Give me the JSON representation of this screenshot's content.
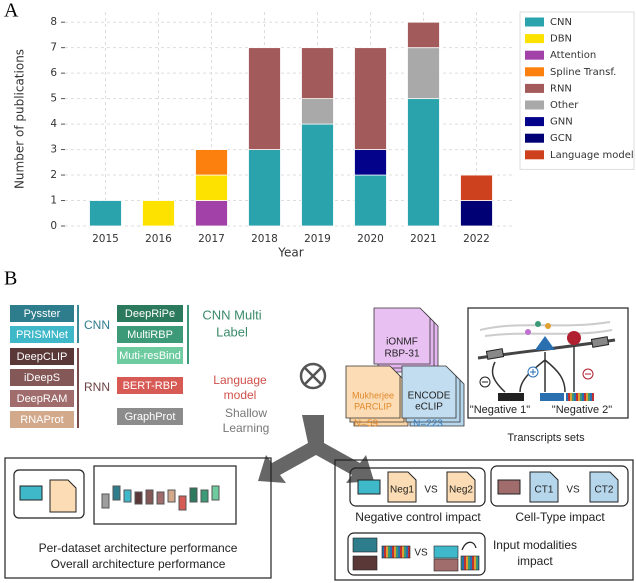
{
  "panel_labels": [
    "A",
    "B"
  ],
  "chart_data": {
    "type": "bar",
    "stacked": true,
    "ylabel": "Number of publications",
    "xlabel": "Year",
    "categories": [
      "2015",
      "2016",
      "2017",
      "2018",
      "2019",
      "2020",
      "2021",
      "2022"
    ],
    "series": [
      {
        "name": "CNN",
        "color": "#2ba3ad",
        "values": [
          1,
          0,
          0,
          3,
          4,
          2,
          5,
          0
        ]
      },
      {
        "name": "DBN",
        "color": "#fde200",
        "values": [
          0,
          1,
          1,
          0,
          0,
          0,
          0,
          0
        ]
      },
      {
        "name": "Attention",
        "color": "#a241a8",
        "values": [
          0,
          0,
          1,
          0,
          0,
          0,
          0,
          0
        ]
      },
      {
        "name": "Spline Transf.",
        "color": "#fc800e",
        "values": [
          0,
          0,
          1,
          0,
          0,
          0,
          0,
          0
        ]
      },
      {
        "name": "RNN",
        "color": "#a35a5a",
        "values": [
          0,
          0,
          0,
          4,
          2,
          4,
          1,
          0
        ]
      },
      {
        "name": "Other",
        "color": "#a9a9a9",
        "values": [
          0,
          0,
          0,
          0,
          1,
          0,
          2,
          0
        ]
      },
      {
        "name": "GNN",
        "color": "#02028a",
        "values": [
          0,
          0,
          0,
          0,
          0,
          1,
          0,
          0
        ]
      },
      {
        "name": "GCN",
        "color": "#000074",
        "values": [
          0,
          0,
          0,
          0,
          0,
          0,
          0,
          1
        ]
      },
      {
        "name": "Language model",
        "color": "#ce411f",
        "values": [
          0,
          0,
          0,
          0,
          0,
          0,
          0,
          1
        ]
      }
    ],
    "ylim": [
      0,
      8.4
    ],
    "yticks": [
      0,
      1,
      2,
      3,
      4,
      5,
      6,
      7,
      8
    ],
    "grid": true,
    "legend": "right"
  },
  "diagram": {
    "groups": [
      {
        "label": [
          "CNN"
        ],
        "items": [
          "Pysster",
          "PRISMNet"
        ]
      },
      {
        "label": [
          "RNN"
        ],
        "items": [
          "DeepCLIP",
          "iDeepS",
          "DeepRAM",
          "RNAProt"
        ]
      },
      {
        "label": [
          "CNN Multi",
          "Label"
        ],
        "items": [
          "DeepRiPe",
          "MultiRBP",
          "Muti-resBind"
        ]
      },
      {
        "label": [
          "Language",
          "model"
        ],
        "items": [
          "BERT-RBP"
        ]
      },
      {
        "label": [
          "Shallow",
          "Learning"
        ],
        "items": [
          "GraphProt"
        ]
      }
    ],
    "datasets": [
      {
        "name": [
          "iONMF",
          "RBP-31"
        ]
      },
      {
        "name": [
          "Mukherjee",
          "PARCLIP"
        ],
        "count": "N=59"
      },
      {
        "name": [
          "ENCODE",
          "eCLIP"
        ],
        "count": "N=223"
      }
    ],
    "transcripts": {
      "negatives": [
        "\"Negative 1\"",
        "\"Negative 2\""
      ],
      "caption": "Transcripts sets"
    },
    "outputs": {
      "architecture": [
        "Per-dataset architecture performance",
        "Overall architecture performance"
      ],
      "negative_control": {
        "a": "Neg1",
        "vs": "VS",
        "b": "Neg2",
        "caption": "Negative control impact"
      },
      "cell_type": {
        "a": "CT1",
        "vs": "VS",
        "b": "CT2",
        "caption": "Cell-Type impact"
      },
      "modalities": {
        "vs": "VS",
        "caption": [
          "Input modalities",
          "impact"
        ]
      }
    }
  }
}
